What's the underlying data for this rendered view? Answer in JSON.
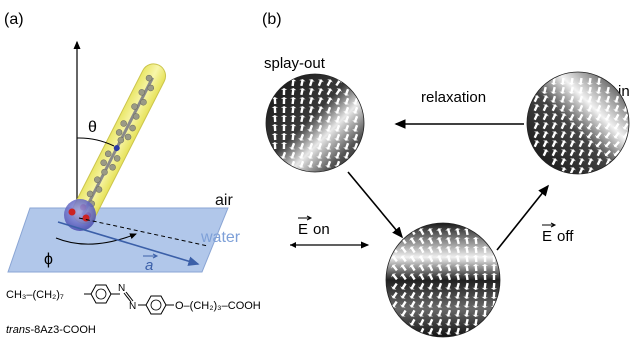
{
  "panel_a": {
    "label": "(a)",
    "theta": "θ",
    "phi": "ϕ",
    "air": "air",
    "water": "water",
    "a_vector": "a",
    "formula_left": "CH₃–(CH₂)₇",
    "formula_right": "O–(CH₂)₃–COOH",
    "azo_n1": "N",
    "azo_n2": "N",
    "molecule_name_italic": "trans",
    "molecule_name_rest": "-8Az3-COOH"
  },
  "panel_b": {
    "label": "(b)",
    "splay_out": "splay-out",
    "splay_in": "splay-in",
    "relaxation": "relaxation",
    "e_symbol": "E",
    "e_on": "on",
    "e_off": "off"
  },
  "colors": {
    "tube_fill": "#f3f07a",
    "plane_fill": "#a9c1e8",
    "arrow_blue": "#3b5fa8",
    "water_text": "#7ea0d8",
    "sphere_fill": "#6b6ec4"
  }
}
